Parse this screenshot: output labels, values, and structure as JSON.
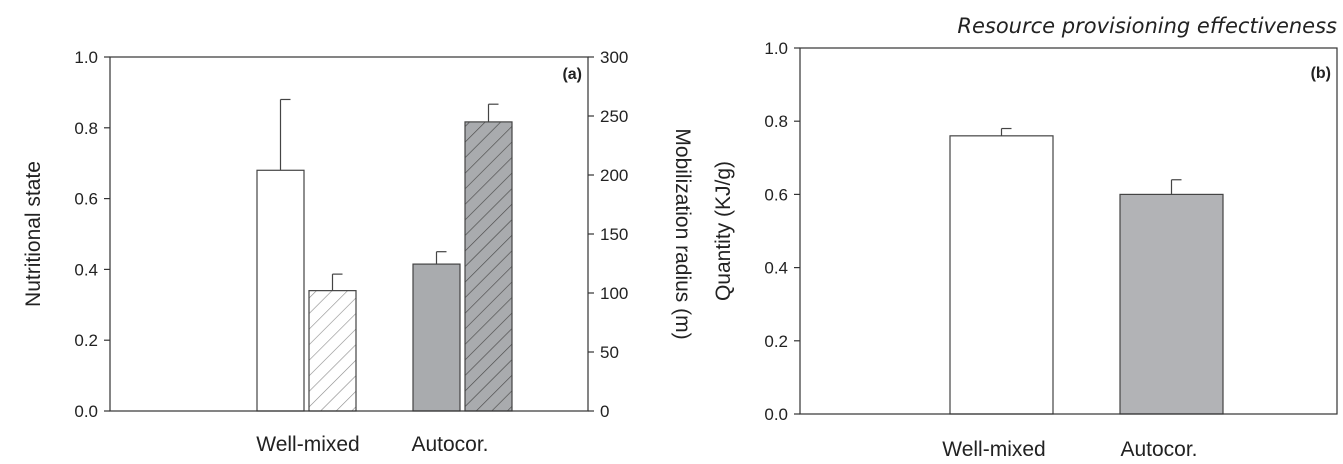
{
  "chart_data": [
    {
      "type": "bar",
      "panel_label": "(a)",
      "title": "",
      "categories": [
        "Well-mixed",
        "Autocor."
      ],
      "ylabel": "Nutritional state",
      "y2label": "Mobilization radius (m)",
      "ylim": [
        0,
        1.0
      ],
      "y2lim": [
        0,
        300
      ],
      "yticks": [
        "0.0",
        "0.2",
        "0.4",
        "0.6",
        "0.8",
        "1.0"
      ],
      "y2ticks": [
        "0",
        "50",
        "100",
        "150",
        "200",
        "250",
        "300"
      ],
      "series": [
        {
          "axis": "left",
          "values": [
            0.68,
            0.415
          ],
          "errors": [
            0.2,
            0.035
          ],
          "colors": [
            "#ffffff",
            "#a9abae"
          ],
          "hatched": false
        },
        {
          "axis": "right",
          "values": [
            102,
            245
          ],
          "errors": [
            14,
            15
          ],
          "colors": [
            "#ffffff",
            "#a9abae"
          ],
          "hatched": true
        }
      ],
      "grid": false
    },
    {
      "type": "bar",
      "panel_label": "(b)",
      "title": "Resource provisioning effectiveness",
      "categories": [
        "Well-mixed",
        "Autocor."
      ],
      "ylabel": "Quantity (KJ/g)",
      "ylim": [
        0,
        1.0
      ],
      "yticks": [
        "0.0",
        "0.2",
        "0.4",
        "0.6",
        "0.8",
        "1.0"
      ],
      "series": [
        {
          "values": [
            0.76,
            0.6
          ],
          "errors": [
            0.02,
            0.04
          ],
          "colors": [
            "#ffffff",
            "#b2b3b6"
          ]
        }
      ],
      "grid": false
    }
  ]
}
